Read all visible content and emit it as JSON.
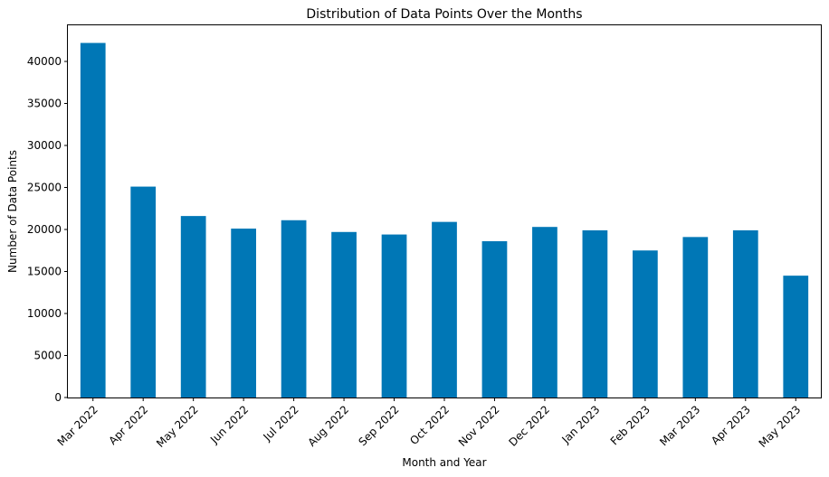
{
  "chart_data": {
    "type": "bar",
    "title": "Distribution of Data Points Over the Months",
    "xlabel": "Month and Year",
    "ylabel": "Number of Data Points",
    "categories": [
      "Mar 2022",
      "Apr 2022",
      "May 2022",
      "Jun 2022",
      "Jul 2022",
      "Aug 2022",
      "Sep 2022",
      "Oct 2022",
      "Nov 2022",
      "Dec 2022",
      "Jan 2023",
      "Feb 2023",
      "Mar 2023",
      "Apr 2023",
      "May 2023"
    ],
    "values": [
      42200,
      25100,
      21600,
      20100,
      21100,
      19700,
      19400,
      20900,
      18600,
      20300,
      19900,
      17500,
      19100,
      19900,
      14500
    ],
    "ylim": [
      0,
      44300
    ],
    "yticks": [
      0,
      5000,
      10000,
      15000,
      20000,
      25000,
      30000,
      35000,
      40000
    ],
    "bar_color": "#0077b6",
    "grid": false,
    "legend": "none"
  }
}
